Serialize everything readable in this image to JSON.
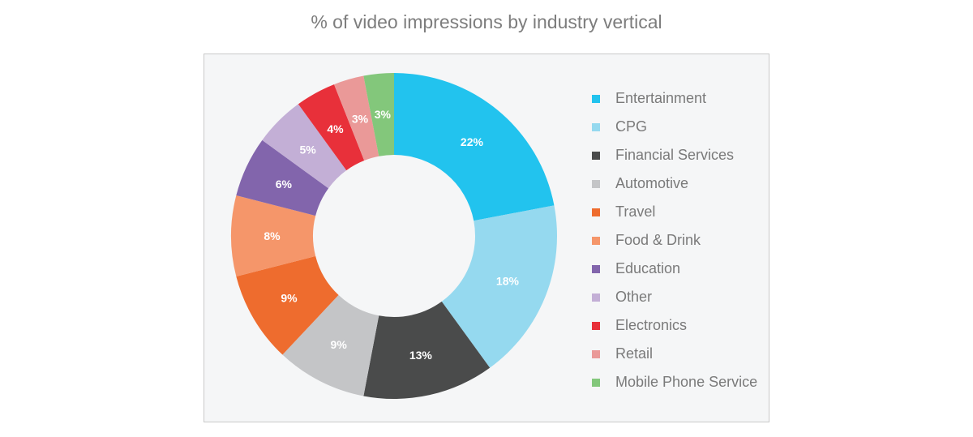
{
  "chart_data": {
    "type": "pie",
    "title": "% of video impressions by industry vertical",
    "legend_position": "right",
    "categories": [
      "Entertainment",
      "CPG",
      "Financial Services",
      "Automotive",
      "Travel",
      "Food & Drink",
      "Education",
      "Other",
      "Electronics",
      "Retail",
      "Mobile Phone Service"
    ],
    "values": [
      22,
      18,
      13,
      9,
      9,
      8,
      6,
      5,
      4,
      3,
      3
    ],
    "labels": [
      "22%",
      "18%",
      "13%",
      "9%",
      "9%",
      "8%",
      "6%",
      "5%",
      "4%",
      "3%",
      "3%"
    ],
    "colors": [
      "#22c3ee",
      "#95d9ef",
      "#4a4b4b",
      "#c4c5c7",
      "#ee6c2e",
      "#f5966a",
      "#8265ac",
      "#c3afd6",
      "#e8303a",
      "#ea9998",
      "#83c77b"
    ]
  }
}
